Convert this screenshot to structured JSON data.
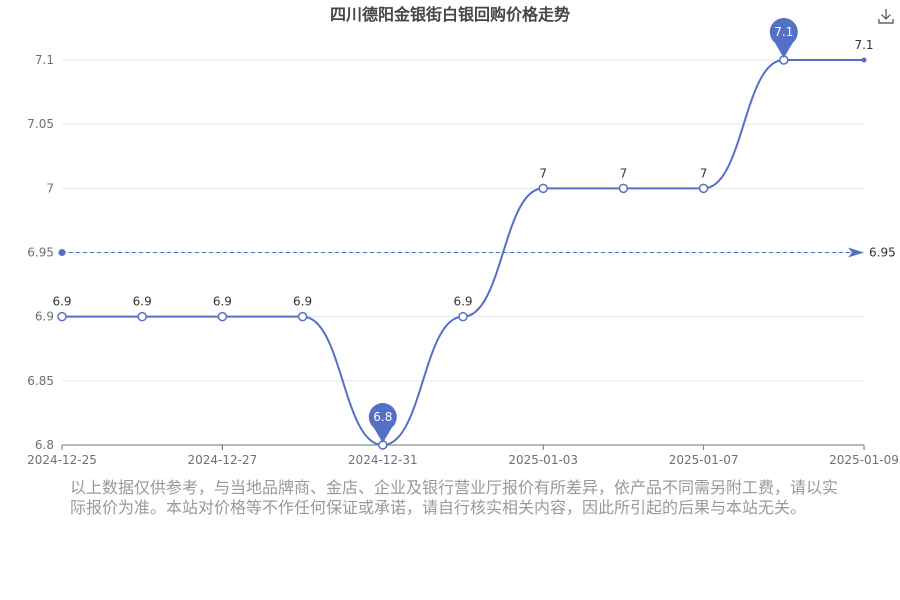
{
  "chart_data": {
    "type": "line",
    "title": "四川德阳金银街白银回购价格走势",
    "x": [
      "2024-12-25",
      "2024-12-26",
      "2024-12-27",
      "2024-12-28",
      "2024-12-31",
      "2025-01-02",
      "2025-01-03",
      "2025-01-06",
      "2025-01-07",
      "2025-01-08",
      "2025-01-09"
    ],
    "x_tick_labels": [
      "2024-12-25",
      "2024-12-27",
      "2024-12-31",
      "2025-01-03",
      "2025-01-07",
      "2025-01-09"
    ],
    "values": [
      6.9,
      6.9,
      6.9,
      6.9,
      6.8,
      6.9,
      7,
      7,
      7,
      7.1,
      7.1
    ],
    "data_labels": [
      "6.9",
      "6.9",
      "6.9",
      "6.9",
      "",
      "6.9",
      "7",
      "7",
      "7",
      "",
      "7.1"
    ],
    "y_ticks": [
      "6.8",
      "6.85",
      "6.9",
      "6.95",
      "7",
      "7.05",
      "7.1"
    ],
    "ylim": [
      6.8,
      7.1
    ],
    "mark_points": {
      "max": {
        "index": 9,
        "label": "7.1"
      },
      "min": {
        "index": 4,
        "label": "6.8"
      }
    },
    "mark_line": {
      "value": 6.95,
      "label": "6.95"
    },
    "grid": true,
    "smooth": true,
    "colors": {
      "line": "#5470c6",
      "grid": "#e0e6f1",
      "axis": "#6e7079"
    }
  },
  "toolbar": {
    "download_icon": "download-icon"
  },
  "disclaimer": "以上数据仅供参考，与当地品牌商、金店、企业及银行营业厅报价有所差异，依产品不同需另附工费，请以实际报价为准。本站对价格等不作任何保证或承诺，请自行核实相关内容，因此所引起的后果与本站无关。"
}
